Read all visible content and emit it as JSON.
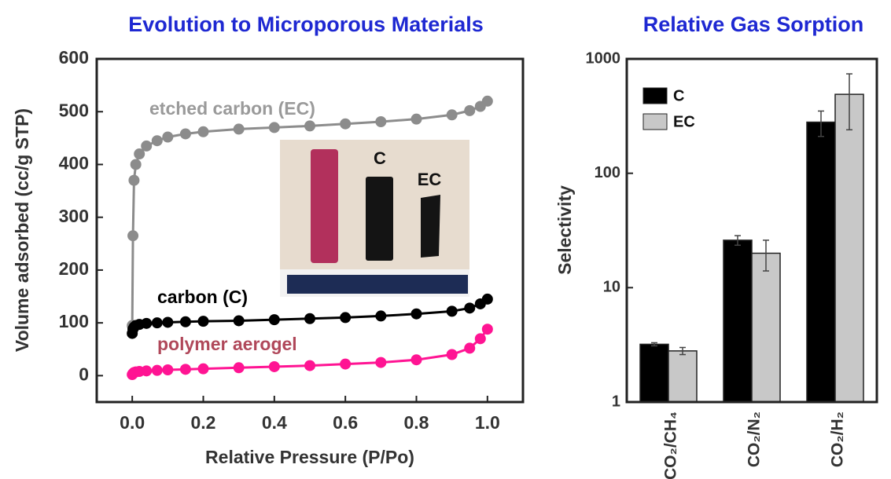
{
  "chart_data": [
    {
      "type": "line",
      "title": "Evolution to Microporous Materials",
      "xlabel": "Relative Pressure (P/Po)",
      "ylabel": "Volume adsorbed (cc/g STP)",
      "x": [
        0,
        0.002,
        0.005,
        0.01,
        0.02,
        0.04,
        0.07,
        0.1,
        0.15,
        0.2,
        0.3,
        0.4,
        0.5,
        0.6,
        0.7,
        0.8,
        0.9,
        0.95,
        0.98,
        1.0
      ],
      "series": [
        {
          "name": "etched carbon (EC)",
          "color": "#8c8c8c",
          "values": [
            95,
            265,
            370,
            400,
            420,
            435,
            445,
            452,
            458,
            462,
            467,
            470,
            473,
            477,
            481,
            486,
            494,
            502,
            510,
            520
          ]
        },
        {
          "name": "carbon (C)",
          "color": "#000000",
          "values": [
            80,
            88,
            92,
            95,
            97,
            99,
            100,
            101,
            102,
            103,
            104,
            106,
            108,
            110,
            113,
            117,
            122,
            128,
            136,
            145
          ]
        },
        {
          "name": "polymer aerogel",
          "color": "#ff1493",
          "values": [
            2,
            4,
            6,
            7,
            8,
            9,
            10,
            11,
            12,
            13,
            15,
            17,
            19,
            22,
            25,
            30,
            40,
            52,
            70,
            88
          ]
        }
      ],
      "xlim": [
        -0.1,
        1.1
      ],
      "ylim": [
        -50,
        600
      ],
      "xticks": [
        {
          "value": 0,
          "label": "0.0"
        },
        0.2,
        0.4,
        0.6,
        0.8,
        {
          "value": 1,
          "label": "1.0"
        }
      ],
      "yticks": [
        0,
        100,
        200,
        300,
        400,
        500,
        600
      ],
      "inset_labels": [
        "C",
        "EC"
      ]
    },
    {
      "type": "bar",
      "title": "Relative Gas Sorption",
      "ylabel": "Selectivity",
      "categories": [
        "CO₂/CH₄",
        "CO₂/N₂",
        "CO₂/H₂"
      ],
      "series": [
        {
          "name": "C",
          "color": "#000000",
          "values": [
            3.2,
            26,
            280
          ],
          "errors": [
            0.1,
            2.5,
            70
          ]
        },
        {
          "name": "EC",
          "color": "#c8c8c8",
          "values": [
            2.8,
            20,
            490
          ],
          "errors": [
            0.2,
            6,
            250
          ]
        }
      ],
      "log_scale": true,
      "ylim": [
        1,
        1000
      ],
      "yticks": [
        1,
        10,
        100,
        1000
      ],
      "legend": "upper-left"
    }
  ]
}
